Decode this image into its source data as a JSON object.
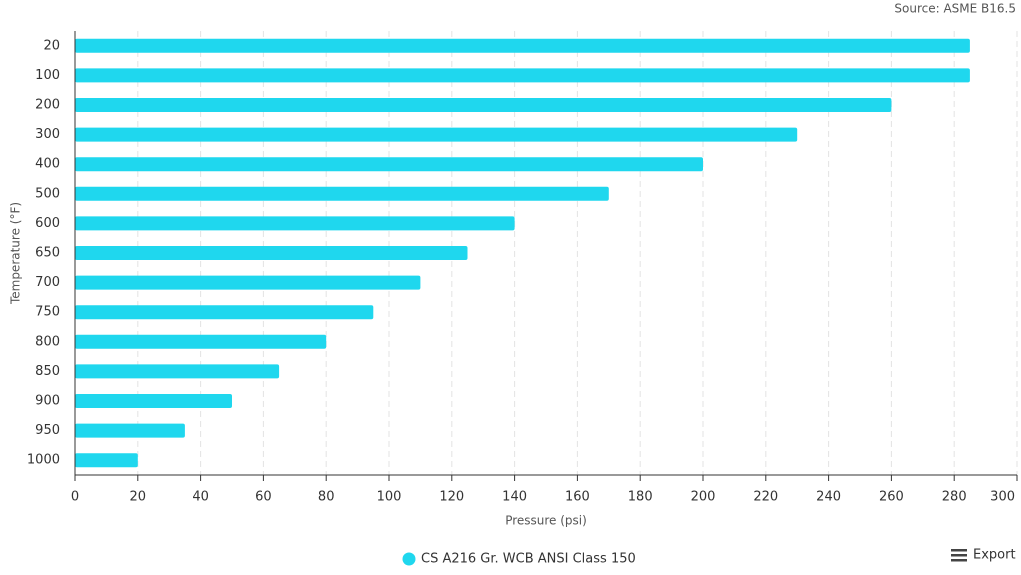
{
  "chart_data": {
    "type": "hbar",
    "source": "Source: ASME B16.5",
    "x_label": "Pressure (psi)",
    "y_label": "Temperature (°F)",
    "categories": [
      "20",
      "100",
      "200",
      "300",
      "400",
      "500",
      "600",
      "650",
      "700",
      "750",
      "800",
      "850",
      "900",
      "950",
      "1000"
    ],
    "series": [
      {
        "name": "CS A216 Gr. WCB ANSI Class 150",
        "color": "#1fd7ee",
        "values": [
          285,
          285,
          260,
          230,
          200,
          170,
          140,
          125,
          110,
          95,
          80,
          65,
          50,
          35,
          20
        ]
      }
    ],
    "xlim": [
      0,
      300
    ],
    "xticks": [
      0,
      20,
      40,
      60,
      80,
      100,
      120,
      140,
      160,
      180,
      200,
      220,
      240,
      260,
      280,
      300
    ],
    "grid": true,
    "legend": "bottom"
  },
  "toolbar": {
    "export": "Export"
  }
}
